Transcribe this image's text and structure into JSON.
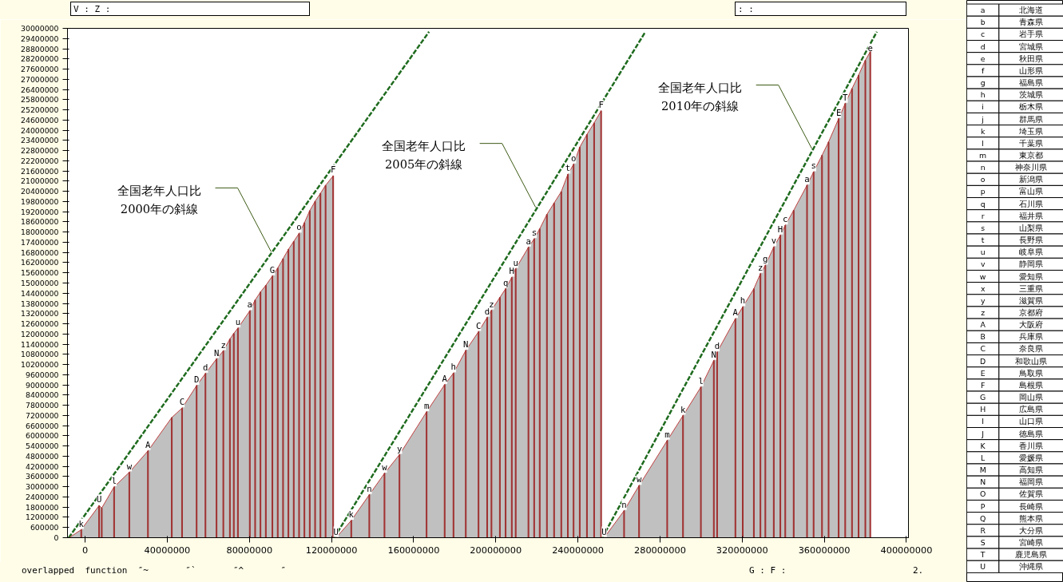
{
  "chart_data": [
    {
      "type": "area",
      "series": [
        {
          "type": "area",
          "color": "#c0c0c0",
          "x": [
            -7800000,
            -1900000,
            6800000,
            8100000,
            14100000,
            21500000,
            30600000,
            42200000,
            47200000,
            54300000,
            58600000,
            64000000,
            67300000,
            70500000,
            72400000,
            74400000,
            80200000,
            82800000,
            85400000,
            88000000,
            91200000,
            93800000,
            96400000,
            99000000,
            101600000,
            104200000,
            106800000,
            109400000,
            112000000,
            114600000,
            117100000,
            120800000
          ],
          "values": [
            0,
            470000,
            1890000,
            1750000,
            2990000,
            3850000,
            5110000,
            7080000,
            7630000,
            8960000,
            9670000,
            10530000,
            11000000,
            11700000,
            12030000,
            12340000,
            13360000,
            14000000,
            14470000,
            14860000,
            15410000,
            15880000,
            16430000,
            16980000,
            17450000,
            17920000,
            18550000,
            19260000,
            19810000,
            20280000,
            20750000,
            21310000
          ]
        },
        {
          "type": "bar",
          "color": "#a03030",
          "x": [
            -7800000,
            -1900000,
            6800000,
            8100000,
            14100000,
            21500000,
            30600000,
            42200000,
            47200000,
            54300000,
            58600000,
            64000000,
            67300000,
            70500000,
            72400000,
            74400000,
            80200000,
            82800000,
            85400000,
            88000000,
            91200000,
            93800000,
            96400000,
            99000000,
            101600000,
            104200000,
            106800000,
            109400000,
            112000000,
            114600000,
            117100000,
            120800000
          ],
          "values": [
            0,
            470000,
            1890000,
            1750000,
            2990000,
            3850000,
            5110000,
            7080000,
            7630000,
            8960000,
            9670000,
            10530000,
            11000000,
            11700000,
            12030000,
            12340000,
            13360000,
            14000000,
            14470000,
            14860000,
            15410000,
            15880000,
            16430000,
            16980000,
            17450000,
            17920000,
            18550000,
            19260000,
            19810000,
            20280000,
            20750000,
            21310000
          ],
          "value_labels": [
            null,
            "k",
            "U",
            null,
            "l",
            "w",
            "A",
            null,
            "C",
            "D",
            "d",
            "N",
            "z",
            null,
            null,
            "u",
            "a",
            null,
            null,
            null,
            "G",
            null,
            null,
            null,
            null,
            "o",
            null,
            null,
            null,
            null,
            null,
            "F"
          ]
        },
        {
          "type": "line",
          "color": "#1f6b1f",
          "x": [
            -8000000,
            167500000
          ],
          "values": [
            0,
            29800000
          ]
        },
        {
          "type": "area",
          "color": "#c0c0c0",
          "x": [
            122200000,
            129600000,
            138400000,
            145800000,
            153100000,
            166300000,
            175100000,
            179400000,
            185400000,
            191600000,
            195800000,
            197900000,
            202000000,
            204800000,
            207800000,
            209700000,
            215900000,
            218700000,
            221400000,
            224900000,
            228400000,
            231900000,
            235100000,
            237900000,
            240900000,
            244400000,
            247900000,
            251300000
          ],
          "values": [
            0,
            1010000,
            2530000,
            3790000,
            4890000,
            7410000,
            9010000,
            9690000,
            11030000,
            12130000,
            12970000,
            13390000,
            14150000,
            14660000,
            15330000,
            15840000,
            17100000,
            17600000,
            18190000,
            19040000,
            19710000,
            20380000,
            21400000,
            21990000,
            23000000,
            23750000,
            24430000,
            25140000
          ]
        },
        {
          "type": "bar",
          "color": "#a03030",
          "x": [
            122200000,
            129600000,
            138400000,
            145800000,
            153100000,
            166300000,
            175100000,
            179400000,
            185400000,
            191600000,
            195800000,
            197900000,
            202000000,
            204800000,
            207800000,
            209700000,
            215900000,
            218700000,
            221400000,
            224900000,
            228400000,
            231900000,
            235100000,
            237900000,
            240900000,
            244400000,
            247900000,
            251300000
          ],
          "values": [
            0,
            1010000,
            2530000,
            3790000,
            4890000,
            7410000,
            9010000,
            9690000,
            11030000,
            12130000,
            12970000,
            13390000,
            14150000,
            14660000,
            15330000,
            15840000,
            17100000,
            17600000,
            18190000,
            19040000,
            19710000,
            20380000,
            21400000,
            21990000,
            23000000,
            23750000,
            24430000,
            25140000
          ],
          "value_labels": [
            "U",
            "k",
            "n",
            "w",
            "y",
            "m",
            "A",
            "h",
            "N",
            "C",
            "d",
            "z",
            null,
            "q",
            "H",
            "u",
            "a",
            "s",
            null,
            null,
            null,
            null,
            "t",
            "o",
            null,
            null,
            null,
            "F"
          ]
        },
        {
          "type": "line",
          "color": "#1f6b1f",
          "x": [
            121300000,
            272900000
          ],
          "values": [
            0,
            29800000
          ]
        },
        {
          "type": "area",
          "color": "#c0c0c0",
          "x": [
            252800000,
            262500000,
            269800000,
            283500000,
            291200000,
            299900000,
            306200000,
            307800000,
            316700000,
            320300000,
            325700000,
            328900000,
            331300000,
            335400000,
            338600000,
            341000000,
            345100000,
            351600000,
            354800000,
            358900000,
            362100000,
            367000000,
            370200000,
            373500000,
            376700000,
            380000000,
            382400000
          ],
          "values": [
            0,
            1590000,
            3070000,
            5720000,
            7190000,
            8870000,
            10430000,
            10930000,
            12890000,
            13590000,
            14660000,
            15550000,
            16040000,
            17120000,
            17810000,
            18400000,
            19280000,
            20760000,
            21540000,
            22520000,
            23310000,
            24680000,
            25570000,
            26450000,
            27240000,
            28120000,
            28620000
          ]
        },
        {
          "type": "bar",
          "color": "#a03030",
          "x": [
            252800000,
            262500000,
            269800000,
            283500000,
            291200000,
            299900000,
            306200000,
            307800000,
            316700000,
            320300000,
            325700000,
            328900000,
            331300000,
            335400000,
            338600000,
            341000000,
            345100000,
            351600000,
            354800000,
            358900000,
            362100000,
            367000000,
            370200000,
            373500000,
            376700000,
            380000000,
            382400000
          ],
          "values": [
            0,
            1590000,
            3070000,
            5720000,
            7190000,
            8870000,
            10430000,
            10930000,
            12890000,
            13590000,
            14660000,
            15550000,
            16040000,
            17120000,
            17810000,
            18400000,
            19280000,
            20760000,
            21540000,
            22520000,
            23310000,
            24680000,
            25570000,
            26450000,
            27240000,
            28120000,
            28620000
          ],
          "value_labels": [
            "U",
            "n",
            "w",
            "m",
            "k",
            "l",
            "N",
            "d",
            "A",
            "h",
            null,
            "z",
            "g",
            "v",
            "H",
            "c",
            null,
            "a",
            "s",
            null,
            null,
            "E",
            "T",
            null,
            null,
            null,
            "e"
          ]
        },
        {
          "type": "line",
          "color": "#1f6b1f",
          "x": [
            251900000,
            385600000
          ],
          "values": [
            0,
            29800000
          ]
        }
      ],
      "xlim": [
        -8600000,
        401000000
      ],
      "xticks": [
        0,
        40000000,
        80000000,
        120000000,
        160000000,
        200000000,
        240000000,
        280000000,
        320000000,
        360000000,
        400000000
      ],
      "ylim": [
        0,
        30000000
      ],
      "yticks": [
        0,
        600000,
        1200000,
        1800000,
        2400000,
        3000000,
        3600000,
        4200000,
        4800000,
        5400000,
        6000000,
        6600000,
        7200000,
        7800000,
        8400000,
        9000000,
        9600000,
        10200000,
        10800000,
        11400000,
        12000000,
        12600000,
        13200000,
        13800000,
        14400000,
        15000000,
        15600000,
        16200000,
        16800000,
        17400000,
        18000000,
        18600000,
        19200000,
        19800000,
        20400000,
        21000000,
        21600000,
        22200000,
        22800000,
        23400000,
        24000000,
        24600000,
        25200000,
        25800000,
        26400000,
        27000000,
        27600000,
        28200000,
        28800000,
        29400000,
        30000000
      ],
      "grid": false,
      "line_style": "dashed",
      "annotations": [
        {
          "text": "全国老年人口比\n2000年の斜線",
          "x": 90600000,
          "y": 16840000
        },
        {
          "text": "全国老年人口比\n2005年の斜線",
          "x": 219400000,
          "y": 19460000
        },
        {
          "text": "全国老年人口比\n2010年の斜線",
          "x": 354000000,
          "y": 22900000
        },
        "V : Z :",
        ": :",
        "overlapped  function  ″~       ″`       ″^       ″",
        "G : F :",
        "2."
      ]
    },
    {
      "type": "other",
      "categories": [
        "a",
        "b",
        "c",
        "d",
        "e",
        "f",
        "g",
        "h",
        "i",
        "j",
        "k",
        "l",
        "m",
        "n",
        "o",
        "p",
        "q",
        "r",
        "s",
        "t",
        "u",
        "v",
        "w",
        "x",
        "y",
        "z",
        "A",
        "B",
        "C",
        "D",
        "E",
        "F",
        "G",
        "H",
        "I",
        "J",
        "K",
        "L",
        "M",
        "N",
        "O",
        "P",
        "Q",
        "R",
        "S",
        "T",
        "U"
      ],
      "annotations": [
        "北海道",
        "青森県",
        "岩手県",
        "宮城県",
        "秋田県",
        "山形県",
        "福島県",
        "茨城県",
        "栃木県",
        "群馬県",
        "埼玉県",
        "千葉県",
        "東京都",
        "神奈川県",
        "新潟県",
        "富山県",
        "石川県",
        "福井県",
        "山梨県",
        "長野県",
        "岐阜県",
        "静岡県",
        "愛知県",
        "三重県",
        "滋賀県",
        "京都府",
        "大阪府",
        "兵庫県",
        "奈良県",
        "和歌山県",
        "鳥取県",
        "島根県",
        "岡山県",
        "広島県",
        "山口県",
        "徳島県",
        "香川県",
        "愛媛県",
        "高知県",
        "福岡県",
        "佐賀県",
        "長崎県",
        "熊本県",
        "大分県",
        "宮崎県",
        "鹿児島県",
        "沖縄県"
      ]
    }
  ]
}
